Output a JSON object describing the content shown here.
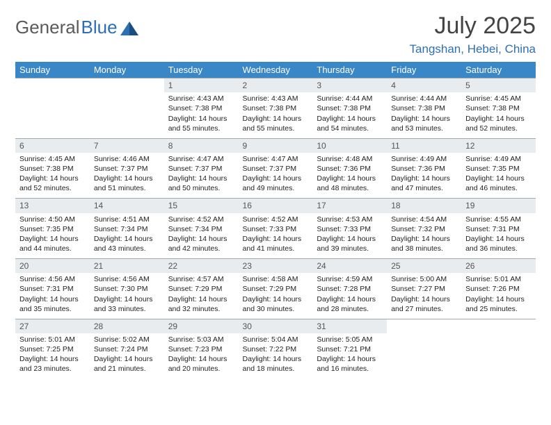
{
  "brand": {
    "part1": "General",
    "part2": "Blue"
  },
  "title": "July 2025",
  "location": "Tangshan, Hebei, China",
  "colors": {
    "header_bg": "#3a87c8",
    "header_text": "#ffffff",
    "daynum_bg": "#e8ecef",
    "border": "#a0a8b0",
    "brand_blue": "#2e6fb4",
    "brand_gray": "#5a5a5a"
  },
  "weekdays": [
    "Sunday",
    "Monday",
    "Tuesday",
    "Wednesday",
    "Thursday",
    "Friday",
    "Saturday"
  ],
  "weeks": [
    [
      null,
      null,
      {
        "n": "1",
        "sr": "4:43 AM",
        "ss": "7:38 PM",
        "dl": "14 hours and 55 minutes."
      },
      {
        "n": "2",
        "sr": "4:43 AM",
        "ss": "7:38 PM",
        "dl": "14 hours and 55 minutes."
      },
      {
        "n": "3",
        "sr": "4:44 AM",
        "ss": "7:38 PM",
        "dl": "14 hours and 54 minutes."
      },
      {
        "n": "4",
        "sr": "4:44 AM",
        "ss": "7:38 PM",
        "dl": "14 hours and 53 minutes."
      },
      {
        "n": "5",
        "sr": "4:45 AM",
        "ss": "7:38 PM",
        "dl": "14 hours and 52 minutes."
      }
    ],
    [
      {
        "n": "6",
        "sr": "4:45 AM",
        "ss": "7:38 PM",
        "dl": "14 hours and 52 minutes."
      },
      {
        "n": "7",
        "sr": "4:46 AM",
        "ss": "7:37 PM",
        "dl": "14 hours and 51 minutes."
      },
      {
        "n": "8",
        "sr": "4:47 AM",
        "ss": "7:37 PM",
        "dl": "14 hours and 50 minutes."
      },
      {
        "n": "9",
        "sr": "4:47 AM",
        "ss": "7:37 PM",
        "dl": "14 hours and 49 minutes."
      },
      {
        "n": "10",
        "sr": "4:48 AM",
        "ss": "7:36 PM",
        "dl": "14 hours and 48 minutes."
      },
      {
        "n": "11",
        "sr": "4:49 AM",
        "ss": "7:36 PM",
        "dl": "14 hours and 47 minutes."
      },
      {
        "n": "12",
        "sr": "4:49 AM",
        "ss": "7:35 PM",
        "dl": "14 hours and 46 minutes."
      }
    ],
    [
      {
        "n": "13",
        "sr": "4:50 AM",
        "ss": "7:35 PM",
        "dl": "14 hours and 44 minutes."
      },
      {
        "n": "14",
        "sr": "4:51 AM",
        "ss": "7:34 PM",
        "dl": "14 hours and 43 minutes."
      },
      {
        "n": "15",
        "sr": "4:52 AM",
        "ss": "7:34 PM",
        "dl": "14 hours and 42 minutes."
      },
      {
        "n": "16",
        "sr": "4:52 AM",
        "ss": "7:33 PM",
        "dl": "14 hours and 41 minutes."
      },
      {
        "n": "17",
        "sr": "4:53 AM",
        "ss": "7:33 PM",
        "dl": "14 hours and 39 minutes."
      },
      {
        "n": "18",
        "sr": "4:54 AM",
        "ss": "7:32 PM",
        "dl": "14 hours and 38 minutes."
      },
      {
        "n": "19",
        "sr": "4:55 AM",
        "ss": "7:31 PM",
        "dl": "14 hours and 36 minutes."
      }
    ],
    [
      {
        "n": "20",
        "sr": "4:56 AM",
        "ss": "7:31 PM",
        "dl": "14 hours and 35 minutes."
      },
      {
        "n": "21",
        "sr": "4:56 AM",
        "ss": "7:30 PM",
        "dl": "14 hours and 33 minutes."
      },
      {
        "n": "22",
        "sr": "4:57 AM",
        "ss": "7:29 PM",
        "dl": "14 hours and 32 minutes."
      },
      {
        "n": "23",
        "sr": "4:58 AM",
        "ss": "7:29 PM",
        "dl": "14 hours and 30 minutes."
      },
      {
        "n": "24",
        "sr": "4:59 AM",
        "ss": "7:28 PM",
        "dl": "14 hours and 28 minutes."
      },
      {
        "n": "25",
        "sr": "5:00 AM",
        "ss": "7:27 PM",
        "dl": "14 hours and 27 minutes."
      },
      {
        "n": "26",
        "sr": "5:01 AM",
        "ss": "7:26 PM",
        "dl": "14 hours and 25 minutes."
      }
    ],
    [
      {
        "n": "27",
        "sr": "5:01 AM",
        "ss": "7:25 PM",
        "dl": "14 hours and 23 minutes."
      },
      {
        "n": "28",
        "sr": "5:02 AM",
        "ss": "7:24 PM",
        "dl": "14 hours and 21 minutes."
      },
      {
        "n": "29",
        "sr": "5:03 AM",
        "ss": "7:23 PM",
        "dl": "14 hours and 20 minutes."
      },
      {
        "n": "30",
        "sr": "5:04 AM",
        "ss": "7:22 PM",
        "dl": "14 hours and 18 minutes."
      },
      {
        "n": "31",
        "sr": "5:05 AM",
        "ss": "7:21 PM",
        "dl": "14 hours and 16 minutes."
      },
      null,
      null
    ]
  ],
  "labels": {
    "sunrise": "Sunrise:",
    "sunset": "Sunset:",
    "daylight": "Daylight:"
  }
}
